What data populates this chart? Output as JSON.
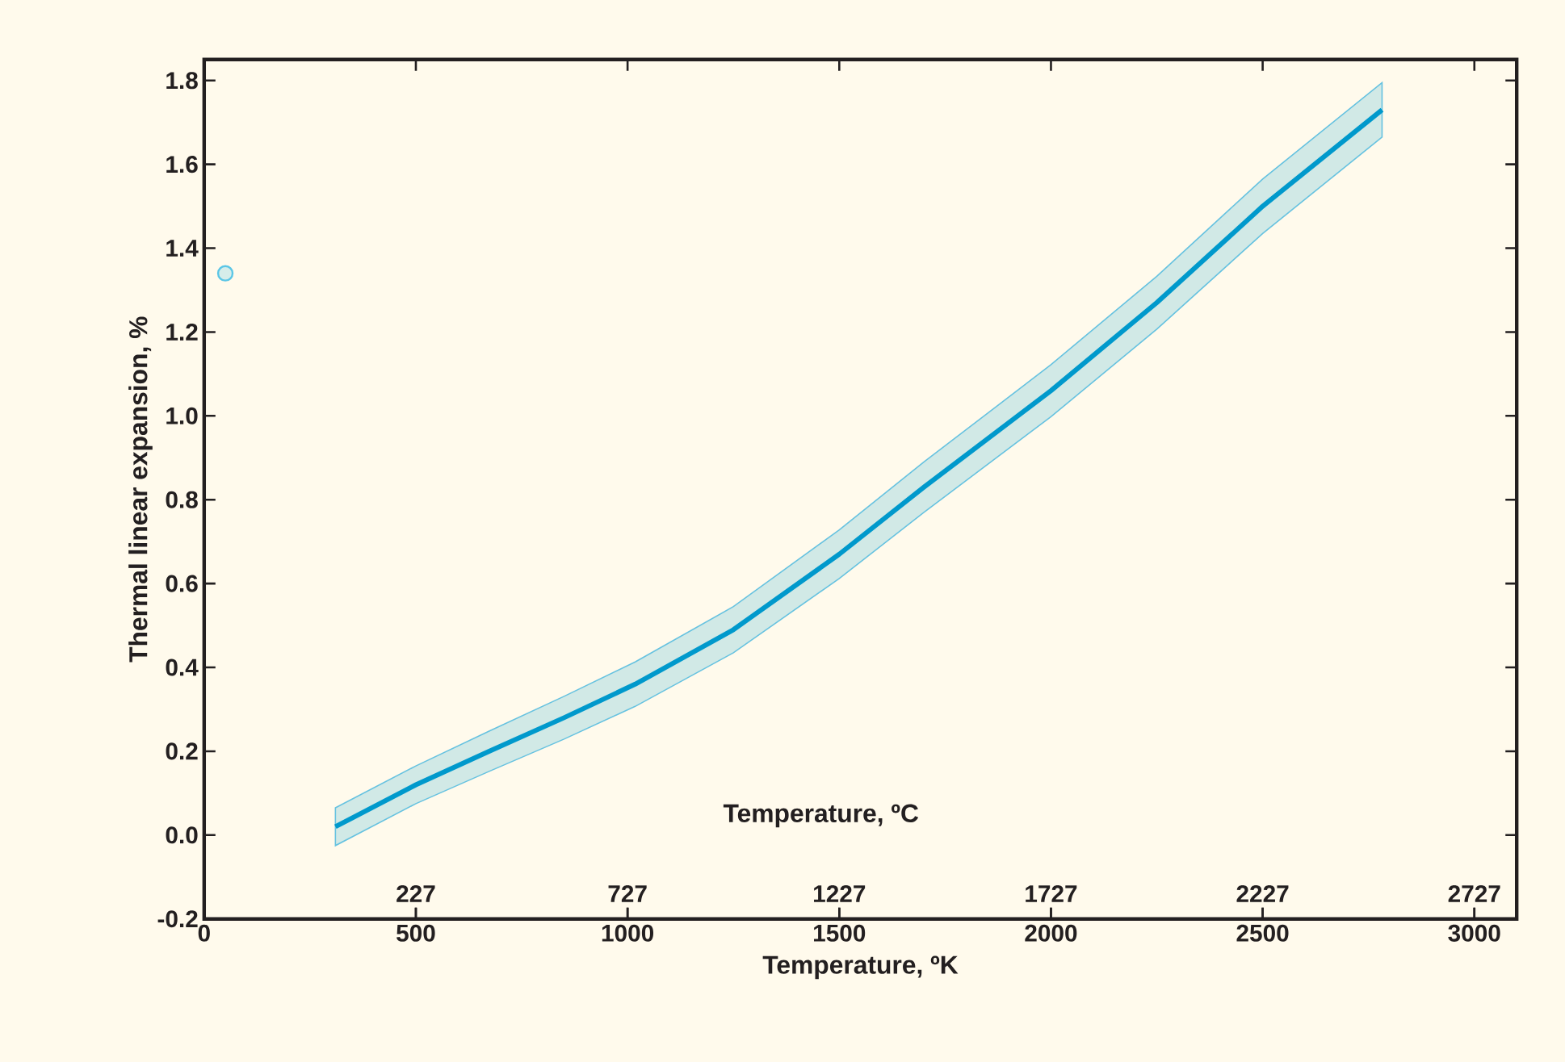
{
  "chart_data": {
    "type": "line",
    "xlabel": "Temperature, ºK",
    "ylabel": "Thermal linear expansion, %",
    "x2label": "Temperature, ºC",
    "xlim": [
      0,
      3100
    ],
    "ylim": [
      -0.2,
      1.85
    ],
    "x2lim": [
      -273,
      2827
    ],
    "xticks": [
      0,
      500,
      1000,
      1500,
      2000,
      2500,
      3000
    ],
    "x2ticks": [
      227,
      727,
      1227,
      1727,
      2227,
      2727
    ],
    "yticks": [
      {
        "value": -0.2,
        "label": "-0.2"
      },
      {
        "value": 0,
        "label": "0.0"
      },
      {
        "value": 0.2,
        "label": "0.2"
      },
      {
        "value": 0.4,
        "label": "0.4"
      },
      {
        "value": 0.6,
        "label": "0.6"
      },
      {
        "value": 0.8,
        "label": "0.8"
      },
      {
        "value": 1.0,
        "label": "1.0"
      },
      {
        "value": 1.2,
        "label": "1.2"
      },
      {
        "value": 1.4,
        "label": "1.4"
      },
      {
        "value": 1.6,
        "label": "1.6"
      },
      {
        "value": 1.8,
        "label": "1.8"
      }
    ],
    "series": [
      {
        "color": "#0099cc",
        "marker": "none",
        "line_style": "solid",
        "x": [
          310,
          500,
          673,
          850,
          1018,
          1250,
          1500,
          1700,
          2000,
          2250,
          2500,
          2782
        ],
        "values": [
          0.02,
          0.12,
          0.2,
          0.28,
          0.36,
          0.49,
          0.67,
          0.83,
          1.06,
          1.27,
          1.5,
          1.73
        ],
        "lower": [
          -0.025,
          0.075,
          0.152,
          0.229,
          0.307,
          0.435,
          0.612,
          0.77,
          0.998,
          1.207,
          1.435,
          1.665
        ],
        "upper": [
          0.065,
          0.165,
          0.248,
          0.331,
          0.413,
          0.545,
          0.728,
          0.89,
          1.122,
          1.333,
          1.565,
          1.795
        ]
      },
      {
        "type": "scatter",
        "color": "#5bc6e6",
        "marker": "circle",
        "x": [
          50
        ],
        "values": [
          1.34
        ]
      }
    ]
  }
}
